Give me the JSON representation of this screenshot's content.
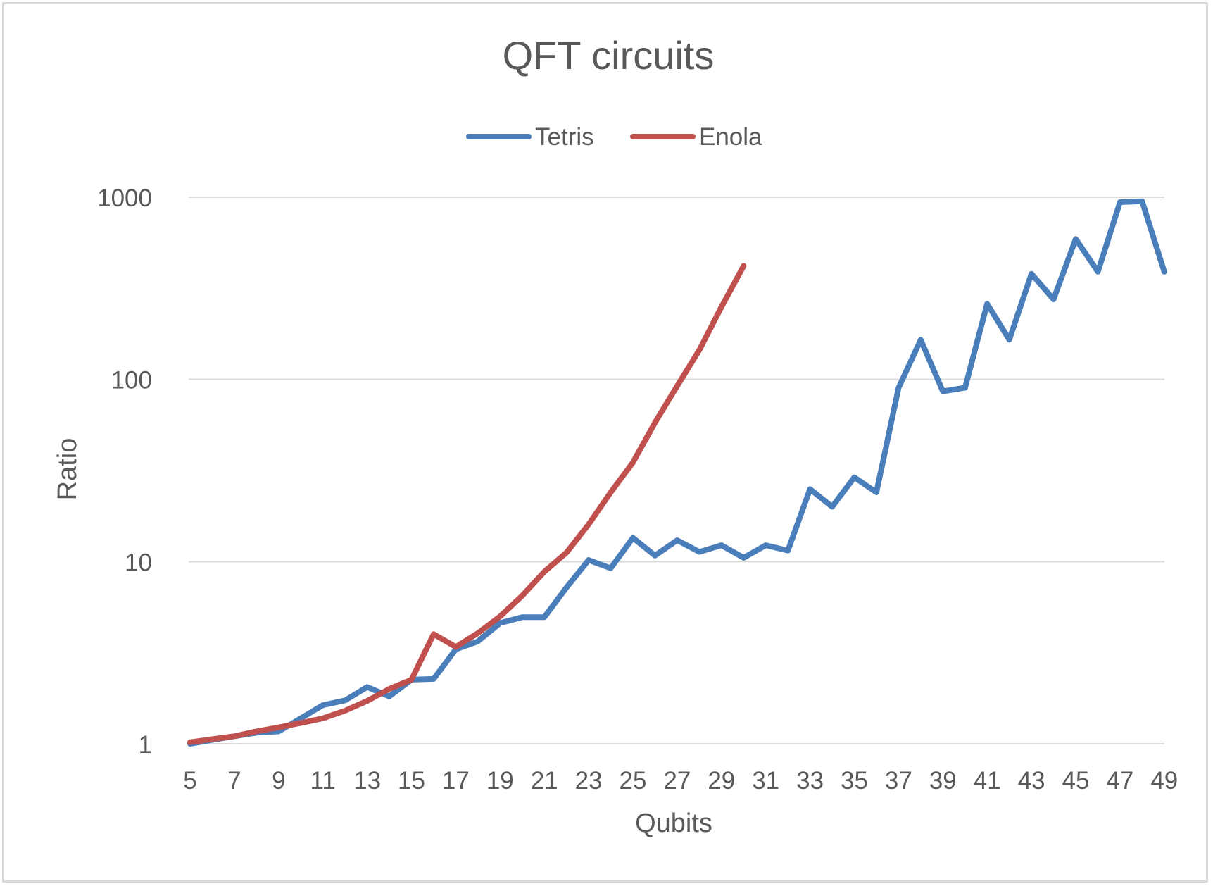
{
  "chart_data": {
    "type": "line",
    "title": "QFT circuits",
    "xlabel": "Qubits",
    "ylabel": "Ratio",
    "y_scale": "log",
    "ylim": [
      1,
      1000
    ],
    "y_ticks": [
      1,
      10,
      100,
      1000
    ],
    "y_tick_labels": [
      "1",
      "10",
      "100",
      "1000"
    ],
    "x_range": [
      5,
      49
    ],
    "x_tick_labels": [
      "5",
      "7",
      "9",
      "11",
      "13",
      "15",
      "17",
      "19",
      "21",
      "23",
      "25",
      "27",
      "29",
      "31",
      "33",
      "35",
      "37",
      "39",
      "41",
      "43",
      "45",
      "47",
      "49"
    ],
    "grid": "horizontal",
    "legend_position": "top",
    "series": [
      {
        "name": "Tetris",
        "color": "#4a7ebb",
        "x": [
          5,
          6,
          7,
          8,
          9,
          10,
          11,
          12,
          13,
          14,
          15,
          16,
          17,
          18,
          19,
          20,
          21,
          22,
          23,
          24,
          25,
          26,
          27,
          28,
          29,
          30,
          31,
          32,
          33,
          34,
          35,
          36,
          37,
          38,
          39,
          40,
          41,
          42,
          43,
          44,
          45,
          46,
          47,
          48,
          49
        ],
        "y": [
          1.0,
          1.05,
          1.1,
          1.15,
          1.17,
          1.38,
          1.63,
          1.73,
          2.05,
          1.82,
          2.25,
          2.27,
          3.3,
          3.65,
          4.6,
          4.95,
          4.95,
          7.2,
          10.2,
          9.2,
          13.5,
          10.8,
          13.1,
          11.3,
          12.3,
          10.5,
          12.3,
          11.5,
          25,
          20,
          29,
          24,
          90,
          165,
          86,
          90,
          260,
          165,
          380,
          275,
          590,
          390,
          940,
          950,
          390
        ]
      },
      {
        "name": "Enola",
        "color": "#c0504d",
        "x": [
          5,
          6,
          7,
          8,
          9,
          10,
          11,
          12,
          13,
          14,
          15,
          16,
          17,
          18,
          19,
          20,
          21,
          22,
          23,
          24,
          25,
          26,
          27,
          28,
          29,
          30
        ],
        "y": [
          1.02,
          1.06,
          1.1,
          1.17,
          1.23,
          1.3,
          1.38,
          1.52,
          1.72,
          2.0,
          2.25,
          4.0,
          3.4,
          4.05,
          5.0,
          6.5,
          8.8,
          11.2,
          16,
          24,
          35,
          58,
          92,
          145,
          250,
          420
        ]
      }
    ]
  }
}
